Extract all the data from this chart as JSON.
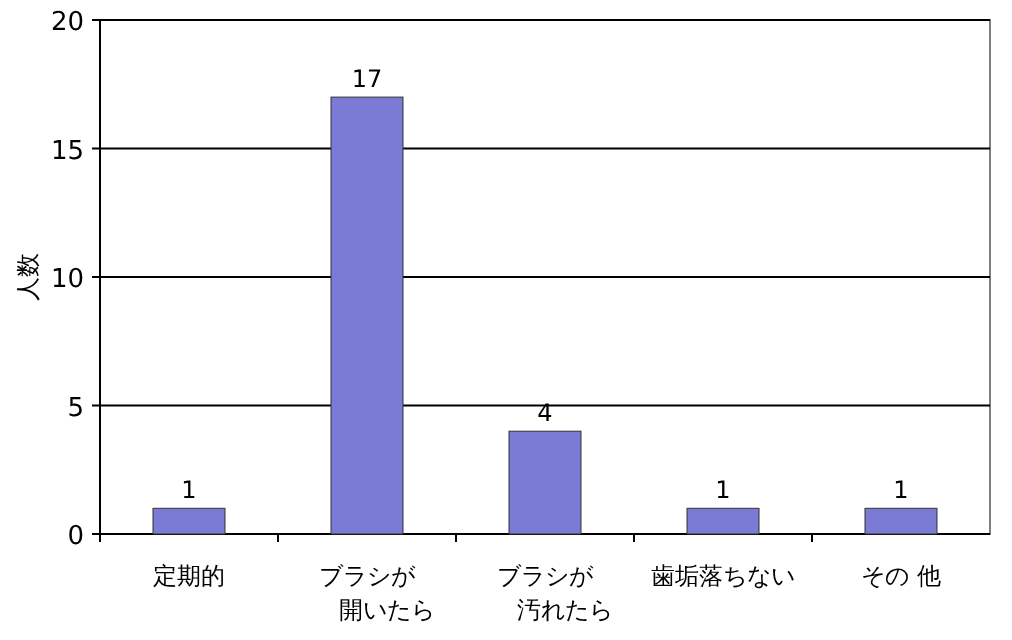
{
  "chart_data": {
    "type": "bar",
    "ylabel": "人数",
    "categories": [
      "定期的",
      "ブラシが開いたら",
      "ブラシが汚れたら",
      "歯垢落ちない",
      "その 他"
    ],
    "values": [
      1,
      17,
      4,
      1,
      1
    ],
    "color": "#7b7bd6",
    "ylim": [
      0,
      20
    ],
    "yticks": [
      0,
      5,
      10,
      15,
      20
    ],
    "grid": "y",
    "data_labels": true
  }
}
